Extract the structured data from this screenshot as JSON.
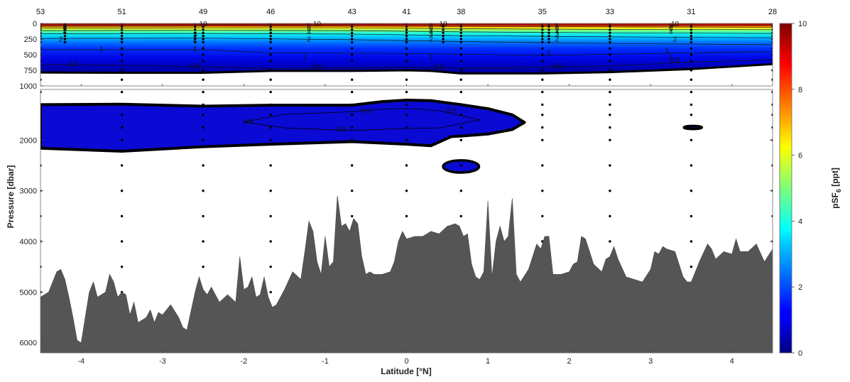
{
  "chart_data": {
    "type": "contour-section",
    "xlabel": "Latitude [°N]",
    "ylabel": "Pressure [dbar]",
    "colorbar_label": "pSF",
    "colorbar_label_sub": "6",
    "colorbar_label_unit": " [ppt]",
    "xlim": [
      -4.5,
      4.5
    ],
    "x_ticks": [
      -4,
      -3,
      -2,
      -1,
      0,
      1,
      2,
      3,
      4
    ],
    "upper_panel": {
      "ylim": [
        0,
        1000
      ],
      "y_ticks": [
        0,
        250,
        500,
        750,
        1000
      ]
    },
    "lower_panel": {
      "ylim": [
        1000,
        6200
      ],
      "y_ticks": [
        2000,
        3000,
        4000,
        5000,
        6000
      ]
    },
    "colorbar": {
      "range": [
        0,
        10
      ],
      "ticks": [
        0,
        2,
        4,
        6,
        8,
        10
      ],
      "colormap": "jet"
    },
    "stations": [
      {
        "label": "53",
        "lat": -4.5
      },
      {
        "label": "51",
        "lat": -3.5
      },
      {
        "label": "49",
        "lat": -2.5
      },
      {
        "label": "46",
        "lat": -1.67
      },
      {
        "label": "43",
        "lat": -0.67
      },
      {
        "label": "41",
        "lat": 0.0
      },
      {
        "label": "38",
        "lat": 0.67
      },
      {
        "label": "35",
        "lat": 1.67
      },
      {
        "label": "33",
        "lat": 2.5
      },
      {
        "label": "31",
        "lat": 3.5
      },
      {
        "label": "28",
        "lat": 4.5
      }
    ],
    "extra_sample_lats": [
      -4.2,
      -2.6,
      0.45,
      1.75
    ],
    "sample_depths": [
      0,
      50,
      100,
      150,
      200,
      250,
      300,
      400,
      500,
      600,
      750,
      900,
      1050,
      1300,
      1500,
      1750,
      2000,
      2500,
      3000,
      3500,
      4000,
      4500,
      5000
    ],
    "contour_labels_upper": [
      "10",
      "8",
      "6",
      "4",
      "3",
      "2",
      "1",
      "0.5"
    ],
    "contour_labels_lower": [
      "0.5"
    ],
    "contours_upper": [
      {
        "value": 10,
        "lat": [
          -4.5,
          -2.5,
          -0.67,
          0.67,
          2.5,
          4.5
        ],
        "depth": [
          25,
          22,
          20,
          24,
          28,
          30
        ]
      },
      {
        "value": 8,
        "lat": [
          -4.5,
          -2.5,
          -0.67,
          0.67,
          2.5,
          4.5
        ],
        "depth": [
          45,
          42,
          40,
          48,
          55,
          60
        ]
      },
      {
        "value": 6,
        "lat": [
          -4.5,
          -2.5,
          -0.67,
          0.67,
          2.5,
          4.5
        ],
        "depth": [
          75,
          70,
          70,
          85,
          95,
          100
        ]
      },
      {
        "value": 4,
        "lat": [
          -4.5,
          -2.5,
          -0.67,
          0.67,
          2.5,
          4.5
        ],
        "depth": [
          115,
          110,
          115,
          135,
          150,
          160
        ]
      },
      {
        "value": 3,
        "lat": [
          -4.5,
          -2.5,
          -0.67,
          0.67,
          2.5,
          4.5
        ],
        "depth": [
          165,
          160,
          170,
          195,
          215,
          230
        ]
      },
      {
        "value": 2,
        "lat": [
          -4.5,
          -2.5,
          -0.67,
          0.67,
          2.5,
          4.5
        ],
        "depth": [
          240,
          235,
          260,
          290,
          320,
          340
        ]
      },
      {
        "value": 1,
        "lat": [
          -4.5,
          -2.5,
          -1.67,
          0.0,
          1.67,
          3.5,
          4.5
        ],
        "depth": [
          420,
          420,
          470,
          480,
          510,
          470,
          450
        ]
      },
      {
        "value": 0.5,
        "lat": [
          -4.5,
          -3.5,
          -2.5,
          -1.67,
          -0.67,
          0.0,
          0.67,
          1.67,
          2.5,
          3.5,
          4.5
        ],
        "depth": [
          660,
          670,
          690,
          720,
          710,
          700,
          720,
          700,
          680,
          620,
          580
        ]
      }
    ],
    "signal_lower_limit_upper": {
      "lat": [
        -4.5,
        -3.5,
        -2.5,
        -1.67,
        -0.67,
        0.0,
        0.3,
        0.67,
        1.67,
        2.5,
        3.5,
        4.5
      ],
      "depth": [
        785,
        790,
        790,
        760,
        760,
        750,
        760,
        800,
        800,
        780,
        730,
        650
      ]
    },
    "patch_main_top": {
      "lat": [
        -4.5,
        -3.5,
        -2.5,
        -1.67,
        -0.67,
        -0.3,
        0.0,
        0.3,
        0.67,
        1.0,
        1.3,
        1.45
      ],
      "depth": [
        1300,
        1290,
        1330,
        1310,
        1310,
        1240,
        1210,
        1220,
        1300,
        1380,
        1500,
        1650
      ]
    },
    "patch_main_bottom": {
      "lat": [
        1.45,
        1.3,
        1.0,
        0.67,
        0.55,
        0.3,
        0.0,
        -0.67,
        -1.67,
        -2.5,
        -3.5,
        -4.5
      ],
      "depth": [
        1650,
        1790,
        1880,
        1920,
        1930,
        2110,
        2080,
        2030,
        2080,
        2130,
        2220,
        2160
      ]
    },
    "contour_lower_05": {
      "lat": [
        -2.0,
        -1.5,
        -0.67,
        -0.2,
        0.1,
        0.4,
        0.9,
        0.4,
        0.0,
        -0.67,
        -1.5,
        -2.0
      ],
      "depth": [
        1640,
        1490,
        1440,
        1380,
        1380,
        1420,
        1600,
        1760,
        1770,
        1810,
        1760,
        1640
      ]
    },
    "patch_small_1": {
      "center_lat": 0.67,
      "center_depth": 2520,
      "half_width_lat": 0.22,
      "half_height_depth": 120
    },
    "patch_small_2": {
      "center_lat": 3.52,
      "center_depth": 1750,
      "half_width_lat": 0.11,
      "half_height_depth": 30
    },
    "bathymetry": {
      "lat": [
        -4.5,
        -4.4,
        -4.3,
        -4.25,
        -4.2,
        -4.15,
        -4.1,
        -4.05,
        -4.0,
        -3.95,
        -3.9,
        -3.85,
        -3.8,
        -3.7,
        -3.65,
        -3.6,
        -3.55,
        -3.5,
        -3.45,
        -3.4,
        -3.35,
        -3.3,
        -3.2,
        -3.15,
        -3.1,
        -3.05,
        -3.0,
        -2.9,
        -2.8,
        -2.75,
        -2.7,
        -2.6,
        -2.55,
        -2.5,
        -2.45,
        -2.4,
        -2.3,
        -2.2,
        -2.1,
        -2.05,
        -2.0,
        -1.95,
        -1.9,
        -1.85,
        -1.8,
        -1.75,
        -1.7,
        -1.65,
        -1.6,
        -1.5,
        -1.4,
        -1.3,
        -1.25,
        -1.2,
        -1.15,
        -1.1,
        -1.05,
        -1.0,
        -0.95,
        -0.9,
        -0.85,
        -0.8,
        -0.75,
        -0.7,
        -0.65,
        -0.6,
        -0.55,
        -0.5,
        -0.45,
        -0.4,
        -0.3,
        -0.2,
        -0.15,
        -0.1,
        -0.05,
        0.0,
        0.1,
        0.2,
        0.3,
        0.4,
        0.5,
        0.6,
        0.65,
        0.7,
        0.75,
        0.8,
        0.85,
        0.9,
        0.95,
        1.0,
        1.05,
        1.1,
        1.15,
        1.2,
        1.25,
        1.3,
        1.35,
        1.4,
        1.5,
        1.6,
        1.65,
        1.7,
        1.75,
        1.8,
        1.9,
        2.0,
        2.05,
        2.1,
        2.15,
        2.2,
        2.3,
        2.4,
        2.45,
        2.5,
        2.55,
        2.6,
        2.7,
        2.8,
        2.9,
        3.0,
        3.05,
        3.1,
        3.15,
        3.2,
        3.3,
        3.35,
        3.4,
        3.45,
        3.5,
        3.55,
        3.6,
        3.7,
        3.75,
        3.8,
        3.9,
        4.0,
        4.05,
        4.1,
        4.2,
        4.3,
        4.4,
        4.5
      ],
      "depth": [
        5100,
        5000,
        4600,
        4550,
        4750,
        5100,
        5500,
        5950,
        6000,
        5500,
        5000,
        4800,
        5100,
        5000,
        4650,
        4800,
        5100,
        5000,
        5050,
        5450,
        5200,
        5600,
        5500,
        5350,
        5600,
        5400,
        5450,
        5250,
        5500,
        5700,
        5750,
        5000,
        4700,
        4950,
        5050,
        4900,
        5200,
        5050,
        5200,
        4300,
        4950,
        4900,
        4700,
        5100,
        5050,
        4700,
        5100,
        5300,
        5250,
        4950,
        4600,
        4750,
        4200,
        3600,
        3800,
        4400,
        4650,
        3900,
        4500,
        4400,
        3100,
        3700,
        3650,
        3800,
        3550,
        3650,
        4300,
        4650,
        4600,
        4650,
        4650,
        4600,
        4400,
        4000,
        3800,
        3950,
        3900,
        3900,
        3800,
        3850,
        3700,
        3650,
        3700,
        3900,
        3850,
        4450,
        4700,
        4750,
        4600,
        3200,
        4700,
        4000,
        3700,
        4000,
        3900,
        3150,
        4650,
        4800,
        4550,
        4050,
        4150,
        3900,
        3900,
        4650,
        4650,
        4600,
        4450,
        4400,
        3900,
        3950,
        4450,
        4600,
        4350,
        4300,
        4100,
        4350,
        4700,
        4750,
        4800,
        4550,
        4200,
        4250,
        4100,
        4150,
        4200,
        4450,
        4700,
        4800,
        4800,
        4600,
        4400,
        4050,
        4150,
        4350,
        4200,
        4250,
        3950,
        4200,
        4200,
        4050,
        4400,
        4150
      ]
    }
  }
}
